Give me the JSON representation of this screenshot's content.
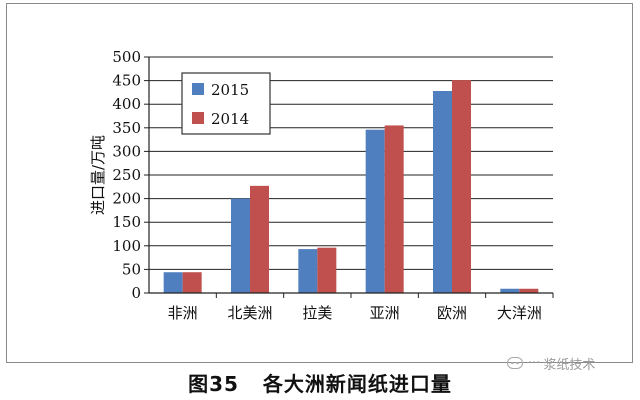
{
  "chart_data": {
    "type": "bar",
    "ylabel": "进口量/万吨",
    "xlabel": "",
    "ylim": [
      0,
      500
    ],
    "yticks": [
      0,
      50,
      100,
      150,
      200,
      250,
      300,
      350,
      400,
      450,
      500
    ],
    "categories": [
      "非洲",
      "北美洲",
      "拉美",
      "亚洲",
      "欧洲",
      "大洋洲"
    ],
    "series": [
      {
        "name": "2015",
        "color": "#4f7fbf",
        "values": [
          44,
          200,
          93,
          346,
          428,
          9
        ]
      },
      {
        "name": "2014",
        "color": "#c0504d",
        "values": [
          44,
          227,
          96,
          355,
          451,
          9
        ]
      }
    ],
    "grid": "horizontal",
    "legend_position": "top-left"
  },
  "caption": {
    "number": "图35",
    "text": "各大洲新闻纸进口量"
  },
  "watermark": {
    "text": "浆纸技术"
  }
}
